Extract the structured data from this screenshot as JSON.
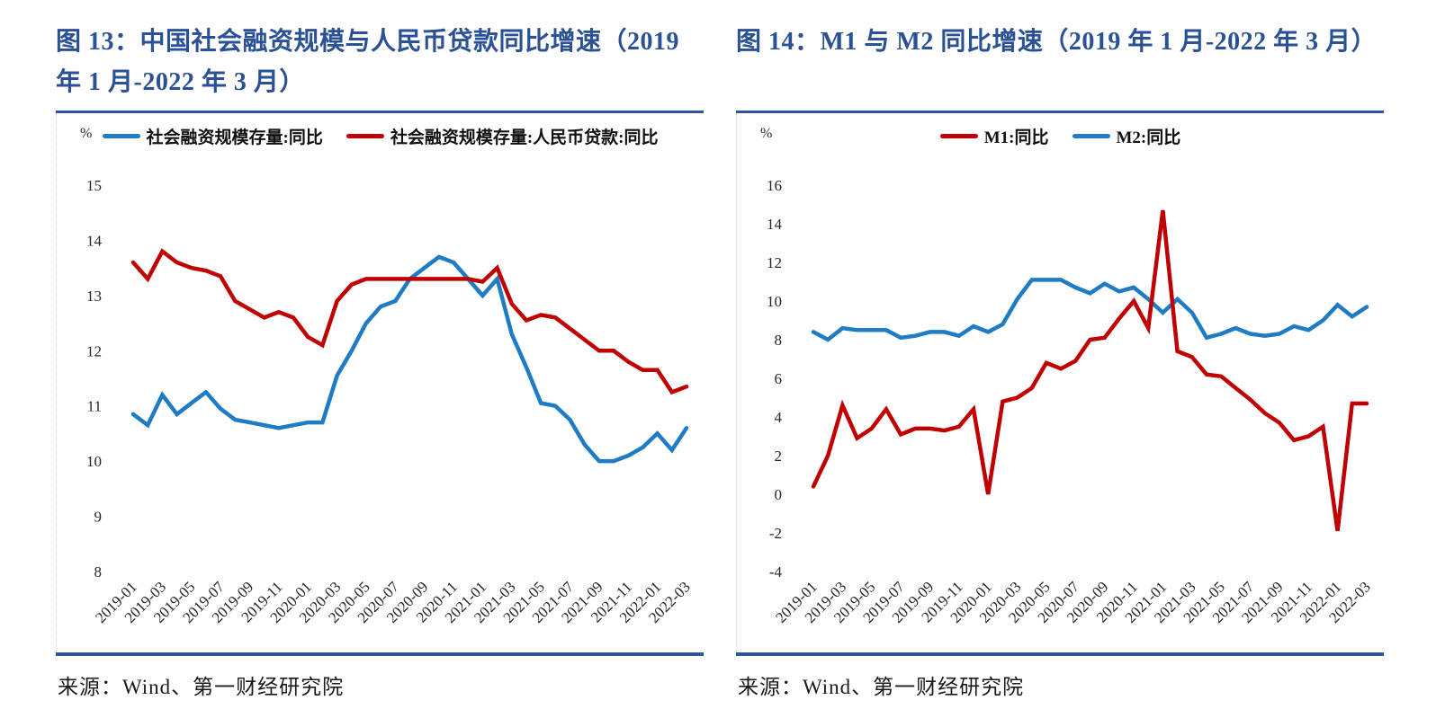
{
  "styles": {
    "title_color": "#2A5195",
    "rule_color": "#2B579A",
    "blue_line": "#1E7BC4",
    "red_line": "#C00000",
    "tick_color": "#262626"
  },
  "panels": [
    {
      "source_label": "来源：Wind、第一财经研究院"
    },
    {
      "source_label": "来源：Wind、第一财经研究院"
    }
  ],
  "chart_data": [
    {
      "type": "line",
      "title": "图 13：中国社会融资规模与人民币贷款同比增速（2019 年 1 月-2022 年 3 月）",
      "xlabel": "",
      "ylabel": "%",
      "ylim": [
        8,
        15
      ],
      "yticks": [
        15,
        14,
        13,
        12,
        11,
        10,
        9,
        8
      ],
      "grid": false,
      "legend_position": "top",
      "xticks_every": 2,
      "x": [
        "2019-01",
        "2019-02",
        "2019-03",
        "2019-04",
        "2019-05",
        "2019-06",
        "2019-07",
        "2019-08",
        "2019-09",
        "2019-10",
        "2019-11",
        "2019-12",
        "2020-01",
        "2020-02",
        "2020-03",
        "2020-04",
        "2020-05",
        "2020-06",
        "2020-07",
        "2020-08",
        "2020-09",
        "2020-10",
        "2020-11",
        "2020-12",
        "2021-01",
        "2021-02",
        "2021-03",
        "2021-04",
        "2021-05",
        "2021-06",
        "2021-07",
        "2021-08",
        "2021-09",
        "2021-10",
        "2021-11",
        "2021-12",
        "2022-01",
        "2022-02",
        "2022-03"
      ],
      "series": [
        {
          "name": "社会融资规模存量:同比",
          "color": "#1E7BC4",
          "values": [
            10.85,
            10.65,
            11.2,
            10.85,
            11.05,
            11.25,
            10.95,
            10.75,
            10.7,
            10.65,
            10.6,
            10.65,
            10.7,
            10.7,
            11.55,
            12.0,
            12.5,
            12.8,
            12.9,
            13.3,
            13.5,
            13.7,
            13.6,
            13.3,
            13.0,
            13.3,
            12.3,
            11.7,
            11.05,
            11.0,
            10.75,
            10.3,
            10.0,
            10.0,
            10.1,
            10.25,
            10.5,
            10.2,
            10.6
          ]
        },
        {
          "name": "社会融资规模存量:人民币贷款:同比",
          "color": "#C00000",
          "values": [
            13.6,
            13.3,
            13.8,
            13.6,
            13.5,
            13.45,
            13.35,
            12.9,
            12.75,
            12.6,
            12.7,
            12.6,
            12.25,
            12.1,
            12.9,
            13.2,
            13.3,
            13.3,
            13.3,
            13.3,
            13.3,
            13.3,
            13.3,
            13.3,
            13.25,
            13.5,
            12.85,
            12.55,
            12.65,
            12.6,
            12.4,
            12.2,
            12.0,
            12.0,
            11.8,
            11.65,
            11.65,
            11.25,
            11.35
          ]
        }
      ],
      "draw_order": [
        0,
        1
      ]
    },
    {
      "type": "line",
      "title": "图 14：M1 与 M2 同比增速（2019 年 1 月-2022 年 3 月）",
      "xlabel": "",
      "ylabel": "%",
      "ylim": [
        -4,
        16
      ],
      "yticks": [
        16,
        14,
        12,
        10,
        8,
        6,
        4,
        2,
        0,
        -2,
        -4
      ],
      "grid": false,
      "legend_position": "top",
      "xticks_every": 2,
      "x": [
        "2019-01",
        "2019-02",
        "2019-03",
        "2019-04",
        "2019-05",
        "2019-06",
        "2019-07",
        "2019-08",
        "2019-09",
        "2019-10",
        "2019-11",
        "2019-12",
        "2020-01",
        "2020-02",
        "2020-03",
        "2020-04",
        "2020-05",
        "2020-06",
        "2020-07",
        "2020-08",
        "2020-09",
        "2020-10",
        "2020-11",
        "2020-12",
        "2021-01",
        "2021-02",
        "2021-03",
        "2021-04",
        "2021-05",
        "2021-06",
        "2021-07",
        "2021-08",
        "2021-09",
        "2021-10",
        "2021-11",
        "2021-12",
        "2022-01",
        "2022-02",
        "2022-03"
      ],
      "series": [
        {
          "name": "M1:同比",
          "color": "#C00000",
          "values": [
            0.4,
            2.0,
            4.6,
            2.9,
            3.4,
            4.4,
            3.1,
            3.4,
            3.4,
            3.3,
            3.5,
            4.4,
            0.0,
            4.8,
            5.0,
            5.5,
            6.8,
            6.5,
            6.9,
            8.0,
            8.1,
            9.1,
            10.0,
            8.6,
            14.7,
            7.4,
            7.1,
            6.2,
            6.1,
            5.5,
            4.9,
            4.2,
            3.7,
            2.8,
            3.0,
            3.5,
            -1.9,
            4.7,
            4.7
          ]
        },
        {
          "name": "M2:同比",
          "color": "#1E7BC4",
          "values": [
            8.4,
            8.0,
            8.6,
            8.5,
            8.5,
            8.5,
            8.1,
            8.2,
            8.4,
            8.4,
            8.2,
            8.7,
            8.4,
            8.8,
            10.1,
            11.1,
            11.1,
            11.1,
            10.7,
            10.4,
            10.9,
            10.5,
            10.7,
            10.1,
            9.4,
            10.1,
            9.4,
            8.1,
            8.3,
            8.6,
            8.3,
            8.2,
            8.3,
            8.7,
            8.5,
            9.0,
            9.8,
            9.2,
            9.7
          ]
        }
      ],
      "draw_order": [
        1,
        0
      ]
    }
  ]
}
